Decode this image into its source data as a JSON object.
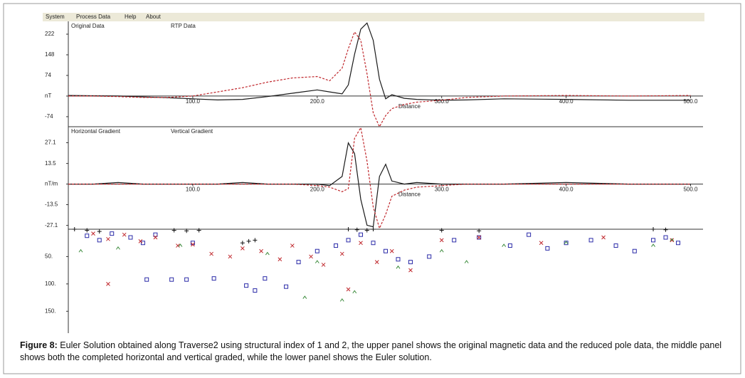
{
  "menu": [
    "System",
    "Process Data",
    "Help",
    "About"
  ],
  "caption": {
    "label": "Figure 8:",
    "text": "Euler Solution obtained along Traverse2 using structural index of 1 and 2, the upper panel shows the original magnetic data and the reduced pole data, the middle panel shows both the completed horizontal and vertical graded, while the lower panel shows the Euler solution."
  },
  "chart_data": [
    {
      "type": "line",
      "xlabel": "Distance",
      "xlim": [
        0,
        510
      ],
      "ylim": [
        -110,
        268
      ],
      "xticks": [
        {
          "value": 100,
          "label": "100.0"
        },
        {
          "value": 200,
          "label": "200.0"
        },
        {
          "value": 300,
          "label": "300.0"
        },
        {
          "value": 400,
          "label": "400.0"
        },
        {
          "value": 500,
          "label": "500.0"
        }
      ],
      "yticks": [
        222,
        148,
        74,
        {
          "value": 0,
          "label": "nT"
        },
        -74
      ],
      "x": [
        0,
        20,
        40,
        60,
        80,
        100,
        120,
        140,
        160,
        180,
        200,
        210,
        220,
        225,
        230,
        235,
        240,
        245,
        250,
        255,
        260,
        270,
        280,
        300,
        320,
        350,
        400,
        450,
        500
      ],
      "series": [
        {
          "name": "Original Data",
          "color": "#1a1a1a",
          "style": "solid",
          "values": [
            2,
            1,
            0,
            -3,
            -6,
            -10,
            -14,
            -12,
            -2,
            10,
            22,
            15,
            8,
            40,
            150,
            240,
            262,
            200,
            60,
            -10,
            5,
            -8,
            -12,
            -15,
            -14,
            -10,
            -12,
            -15,
            -15
          ]
        },
        {
          "name": "RTP Data",
          "color": "#c0282d",
          "style": "dashed",
          "values": [
            0,
            0,
            -2,
            -5,
            -5,
            0,
            15,
            30,
            50,
            65,
            70,
            55,
            100,
            170,
            230,
            200,
            80,
            -60,
            -110,
            -70,
            -45,
            -30,
            -22,
            -15,
            -5,
            0,
            2,
            0,
            2
          ]
        }
      ]
    },
    {
      "type": "line",
      "xlabel": "Distance",
      "xlim": [
        0,
        510
      ],
      "ylim": [
        -29.6,
        37.6
      ],
      "xticks": [
        {
          "value": 100,
          "label": "100.0"
        },
        {
          "value": 200,
          "label": "200.0"
        },
        {
          "value": 300,
          "label": "300.0"
        },
        {
          "value": 400,
          "label": "400.0"
        },
        {
          "value": 500,
          "label": "500.0"
        }
      ],
      "yticks": [
        27.1,
        13.5,
        {
          "value": 0,
          "label": "nT/m"
        },
        -13.5,
        -27.1
      ],
      "x": [
        0,
        20,
        40,
        60,
        80,
        100,
        120,
        140,
        160,
        180,
        200,
        210,
        220,
        225,
        230,
        235,
        240,
        245,
        250,
        255,
        260,
        270,
        280,
        300,
        320,
        350,
        400,
        450,
        500
      ],
      "series": [
        {
          "name": "Horizontal Gradient",
          "color": "#1a1a1a",
          "style": "solid",
          "values": [
            0,
            0,
            1,
            0,
            0,
            0,
            0,
            1,
            0,
            0,
            0,
            -1,
            5,
            27,
            20,
            -10,
            -27,
            -28,
            5,
            13,
            2,
            0,
            1,
            0,
            0,
            0,
            1,
            0,
            0
          ]
        },
        {
          "name": "Vertical Gradient",
          "color": "#c0282d",
          "style": "dashed",
          "values": [
            0,
            0,
            0,
            0,
            0,
            0,
            0,
            0,
            0,
            0,
            -1,
            -2,
            -5,
            -3,
            30,
            37,
            15,
            -15,
            -29,
            -20,
            -8,
            -4,
            -2,
            -1,
            0,
            0,
            0,
            0,
            0
          ]
        }
      ]
    },
    {
      "type": "scatter",
      "xlim": [
        0,
        510
      ],
      "ylim": [
        0,
        190
      ],
      "y_inverted": true,
      "yticks": [
        {
          "value": 50,
          "label": "50."
        },
        {
          "value": 100,
          "label": "100."
        },
        {
          "value": 150,
          "label": "150."
        }
      ],
      "series": [
        {
          "color": "#2b2ba8",
          "marker": "square",
          "x": [
            15,
            25,
            35,
            50,
            60,
            63,
            70,
            83,
            95,
            100,
            117,
            143,
            150,
            158,
            175,
            185,
            200,
            215,
            225,
            235,
            245,
            255,
            265,
            275,
            290,
            310,
            330,
            355,
            370,
            385,
            400,
            420,
            440,
            455,
            470,
            480,
            490
          ],
          "values": [
            12,
            20,
            8,
            15,
            25,
            92,
            10,
            92,
            92,
            25,
            90,
            103,
            112,
            90,
            105,
            60,
            40,
            30,
            20,
            10,
            25,
            40,
            55,
            60,
            50,
            20,
            15,
            30,
            10,
            35,
            25,
            20,
            30,
            40,
            20,
            15,
            25
          ]
        },
        {
          "color": "#c0282d",
          "marker": "x",
          "x": [
            20,
            32,
            45,
            58,
            70,
            88,
            100,
            115,
            130,
            140,
            155,
            170,
            180,
            195,
            205,
            220,
            235,
            248,
            260,
            275,
            300,
            330,
            380,
            430,
            485,
            32,
            225
          ],
          "values": [
            8,
            18,
            10,
            22,
            15,
            30,
            28,
            45,
            50,
            35,
            40,
            55,
            30,
            50,
            65,
            45,
            25,
            60,
            40,
            75,
            20,
            15,
            25,
            15,
            20,
            100,
            110
          ]
        },
        {
          "color": "#111111",
          "marker": "plus",
          "x": [
            5,
            15,
            25,
            85,
            95,
            105,
            140,
            145,
            150,
            225,
            232,
            240,
            245,
            300,
            330,
            470,
            480
          ],
          "values": [
            0,
            2,
            4,
            2,
            3,
            2,
            25,
            22,
            20,
            0,
            1,
            2,
            0,
            2,
            3,
            0,
            1
          ]
        },
        {
          "color": "#3a8a3a",
          "marker": "triangle",
          "x": [
            10,
            40,
            90,
            160,
            200,
            230,
            265,
            300,
            320,
            350,
            400,
            470,
            485,
            190,
            220
          ],
          "values": [
            40,
            35,
            30,
            45,
            60,
            115,
            70,
            40,
            60,
            30,
            25,
            30,
            20,
            125,
            130
          ]
        }
      ]
    }
  ]
}
